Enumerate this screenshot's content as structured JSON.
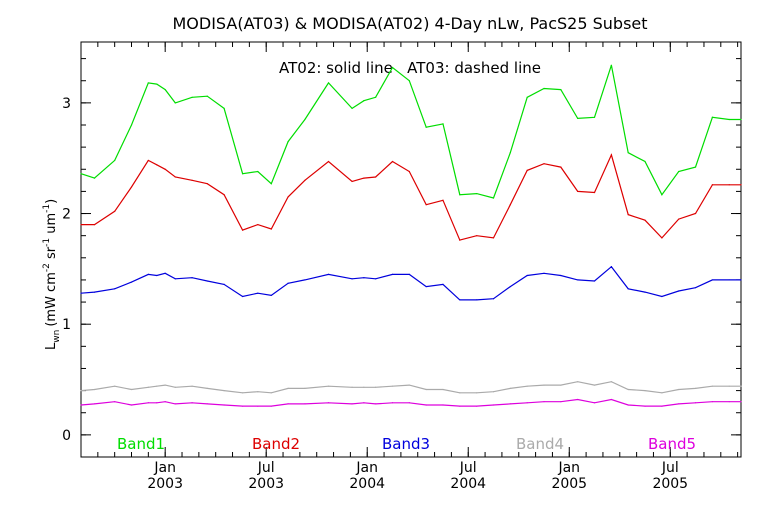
{
  "chart_data": {
    "type": "line",
    "title": "MODISA(AT03) & MODISA(AT02) 4-Day nLw, PacS25 Subset",
    "annotation": "AT02: solid line   AT03: dashed line",
    "ylabel_main": "L",
    "ylabel_sub": "wn",
    "ylabel_units_parts": [
      "(mW cm",
      "-2",
      " sr",
      "-1",
      " um",
      "-1",
      ")"
    ],
    "ylim": [
      -0.2,
      3.55
    ],
    "yticks": [
      0,
      1,
      2,
      3
    ],
    "ytick_labels": [
      "0",
      "1",
      "2",
      "3"
    ],
    "x_month_index_range": [
      0,
      39.2
    ],
    "x_major_ticks": [
      {
        "month_index": 5,
        "line1": "Jan",
        "line2": "2003"
      },
      {
        "month_index": 11,
        "line1": "Jul",
        "line2": "2003"
      },
      {
        "month_index": 17,
        "line1": "Jan",
        "line2": "2004"
      },
      {
        "month_index": 23,
        "line1": "Jul",
        "line2": "2004"
      },
      {
        "month_index": 29,
        "line1": "Jan",
        "line2": "2005"
      },
      {
        "month_index": 35,
        "line1": "Jul",
        "line2": "2005"
      }
    ],
    "grid": false,
    "legend_placement": "bottom inside plot",
    "series": [
      {
        "name": "Band1",
        "color": "#00dd00",
        "x": [
          0,
          0.8,
          2,
          3,
          4,
          4.5,
          5,
          5.6,
          6.6,
          7.5,
          8.5,
          9.6,
          10.5,
          11.3,
          12.3,
          13.3,
          14.7,
          16.1,
          16.8,
          17.5,
          18.5,
          19.5,
          20.5,
          21.5,
          22.5,
          23.5,
          24.5,
          25.5,
          26.5,
          27.5,
          28.5,
          29.5,
          30.5,
          31.5,
          32.5,
          33.5,
          34.5,
          35.5,
          36.5,
          37.5,
          38.5,
          39.2
        ],
        "y": [
          2.36,
          2.32,
          2.48,
          2.8,
          3.18,
          3.17,
          3.12,
          3.0,
          3.05,
          3.06,
          2.95,
          2.36,
          2.38,
          2.27,
          2.65,
          2.85,
          3.18,
          2.95,
          3.02,
          3.05,
          3.32,
          3.2,
          2.78,
          2.81,
          2.17,
          2.18,
          2.14,
          2.55,
          3.05,
          3.13,
          3.12,
          2.86,
          2.87,
          3.34,
          2.55,
          2.47,
          2.17,
          2.38,
          2.42,
          2.87,
          2.85,
          2.85
        ]
      },
      {
        "name": "Band2",
        "color": "#dd0000",
        "x": [
          0,
          0.8,
          2,
          3,
          4,
          4.5,
          5,
          5.6,
          6.6,
          7.5,
          8.5,
          9.6,
          10.5,
          11.3,
          12.3,
          13.3,
          14.7,
          16.1,
          16.8,
          17.5,
          18.5,
          19.5,
          20.5,
          21.5,
          22.5,
          23.5,
          24.5,
          25.5,
          26.5,
          27.5,
          28.5,
          29.5,
          30.5,
          31.5,
          32.5,
          33.5,
          34.5,
          35.5,
          36.5,
          37.5,
          38.5,
          39.2
        ],
        "y": [
          1.9,
          1.9,
          2.02,
          2.24,
          2.48,
          2.44,
          2.4,
          2.33,
          2.3,
          2.27,
          2.17,
          1.85,
          1.9,
          1.86,
          2.15,
          2.3,
          2.47,
          2.29,
          2.32,
          2.33,
          2.47,
          2.38,
          2.08,
          2.12,
          1.76,
          1.8,
          1.78,
          2.08,
          2.39,
          2.45,
          2.42,
          2.2,
          2.19,
          2.53,
          1.99,
          1.94,
          1.78,
          1.95,
          2.0,
          2.26,
          2.26,
          2.26
        ]
      },
      {
        "name": "Band3",
        "color": "#0000dd",
        "x": [
          0,
          0.8,
          2,
          3,
          4,
          4.5,
          5,
          5.6,
          6.6,
          7.5,
          8.5,
          9.6,
          10.5,
          11.3,
          12.3,
          13.3,
          14.7,
          16.1,
          16.8,
          17.5,
          18.5,
          19.5,
          20.5,
          21.5,
          22.5,
          23.5,
          24.5,
          25.5,
          26.5,
          27.5,
          28.5,
          29.5,
          30.5,
          31.5,
          32.5,
          33.5,
          34.5,
          35.5,
          36.5,
          37.5,
          38.5,
          39.2
        ],
        "y": [
          1.28,
          1.29,
          1.32,
          1.38,
          1.45,
          1.44,
          1.46,
          1.41,
          1.42,
          1.39,
          1.36,
          1.25,
          1.28,
          1.26,
          1.37,
          1.4,
          1.45,
          1.41,
          1.42,
          1.41,
          1.45,
          1.45,
          1.34,
          1.36,
          1.22,
          1.22,
          1.23,
          1.34,
          1.44,
          1.46,
          1.44,
          1.4,
          1.39,
          1.52,
          1.32,
          1.29,
          1.25,
          1.3,
          1.33,
          1.4,
          1.4,
          1.4
        ]
      },
      {
        "name": "Band4",
        "color": "#aaaaaa",
        "x": [
          0,
          0.8,
          2,
          3,
          4,
          4.5,
          5,
          5.6,
          6.6,
          7.5,
          8.5,
          9.6,
          10.5,
          11.3,
          12.3,
          13.3,
          14.7,
          16.1,
          16.8,
          17.5,
          18.5,
          19.5,
          20.5,
          21.5,
          22.5,
          23.5,
          24.5,
          25.5,
          26.5,
          27.5,
          28.5,
          29.5,
          30.5,
          31.5,
          32.5,
          33.5,
          34.5,
          35.5,
          36.5,
          37.5,
          38.5,
          39.2
        ],
        "y": [
          0.4,
          0.41,
          0.44,
          0.41,
          0.43,
          0.44,
          0.45,
          0.43,
          0.44,
          0.42,
          0.4,
          0.38,
          0.39,
          0.38,
          0.42,
          0.42,
          0.44,
          0.43,
          0.43,
          0.43,
          0.44,
          0.45,
          0.41,
          0.41,
          0.38,
          0.38,
          0.39,
          0.42,
          0.44,
          0.45,
          0.45,
          0.48,
          0.45,
          0.48,
          0.41,
          0.4,
          0.38,
          0.41,
          0.42,
          0.44,
          0.44,
          0.44
        ]
      },
      {
        "name": "Band5",
        "color": "#dd00dd",
        "x": [
          0,
          0.8,
          2,
          3,
          4,
          4.5,
          5,
          5.6,
          6.6,
          7.5,
          8.5,
          9.6,
          10.5,
          11.3,
          12.3,
          13.3,
          14.7,
          16.1,
          16.8,
          17.5,
          18.5,
          19.5,
          20.5,
          21.5,
          22.5,
          23.5,
          24.5,
          25.5,
          26.5,
          27.5,
          28.5,
          29.5,
          30.5,
          31.5,
          32.5,
          33.5,
          34.5,
          35.5,
          36.5,
          37.5,
          38.5,
          39.2
        ],
        "y": [
          0.27,
          0.28,
          0.3,
          0.27,
          0.29,
          0.29,
          0.3,
          0.28,
          0.29,
          0.28,
          0.27,
          0.26,
          0.26,
          0.26,
          0.28,
          0.28,
          0.29,
          0.28,
          0.29,
          0.28,
          0.29,
          0.29,
          0.27,
          0.27,
          0.26,
          0.26,
          0.27,
          0.28,
          0.29,
          0.3,
          0.3,
          0.32,
          0.29,
          0.32,
          0.27,
          0.26,
          0.26,
          0.28,
          0.29,
          0.3,
          0.3,
          0.3
        ]
      }
    ]
  }
}
